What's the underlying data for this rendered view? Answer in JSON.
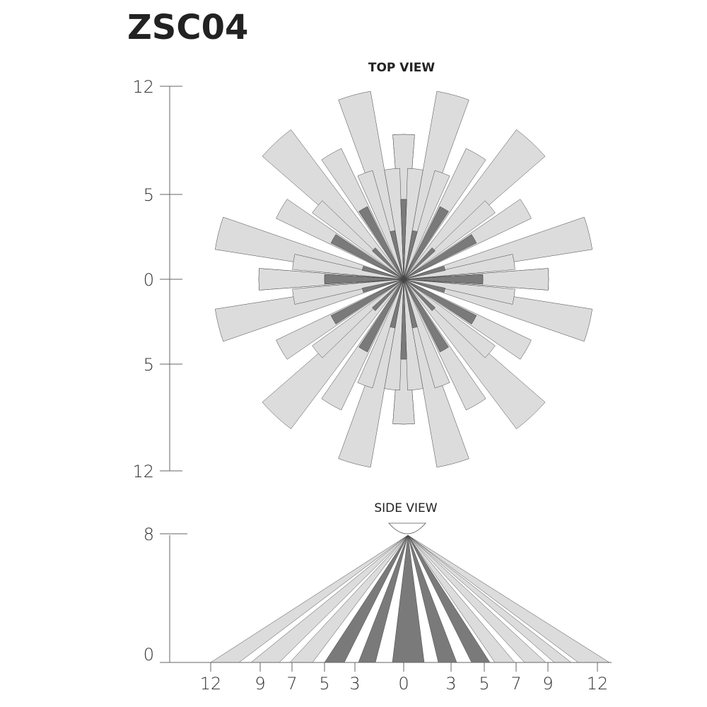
{
  "title": "ZSC04",
  "top_view": {
    "title": "TOP VIEW",
    "axis_labels": [
      "12",
      "5",
      "0",
      "5",
      "12"
    ]
  },
  "side_view": {
    "title": "SIDE VIEW",
    "y_axis_labels": [
      "8",
      "0"
    ],
    "x_axis_labels": [
      "12",
      "9",
      "7",
      "5",
      "3",
      "0",
      "3",
      "5",
      "7",
      "9",
      "12"
    ]
  }
}
